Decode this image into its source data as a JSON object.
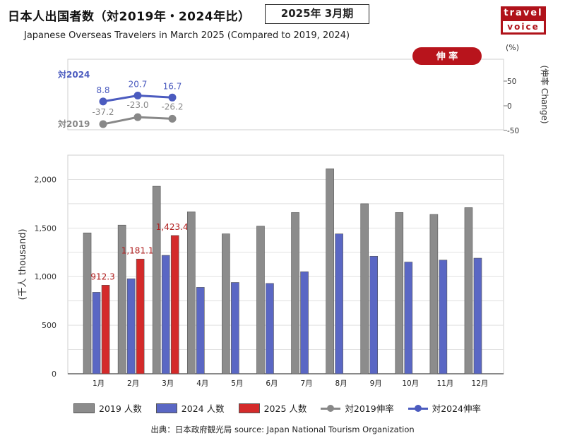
{
  "header": {
    "title": "日本人出国者数（対2019年・2024年比）",
    "period_badge": "2025年 3月期",
    "subtitle": "Japanese Overseas Travelers in March 2025 (Compared to 2019, 2024)",
    "logo_line1": "travel",
    "logo_line2": "voice"
  },
  "source_note": "出典：日本政府観光局  source: Japan National Tourism Organization",
  "colors": {
    "y2019": "#8c8c8c",
    "y2024": "#5a67c4",
    "y2025": "#d42a2a",
    "rate2019": "#888888",
    "rate2024": "#4b5bbf",
    "badge": "#b8141c"
  },
  "chart_data": [
    {
      "type": "line",
      "badge": "伸 率",
      "unit_label": "(%)",
      "ylabel": "(伸率 Change)",
      "ylim": [
        -50,
        100
      ],
      "yticks": [
        50,
        0,
        -50
      ],
      "categories": [
        "1月",
        "2月",
        "3月"
      ],
      "series": [
        {
          "name": "対2024",
          "key": "rate2024",
          "values": [
            8.8,
            20.7,
            16.7
          ],
          "labels": [
            "8.8",
            "20.7",
            "16.7"
          ]
        },
        {
          "name": "対2019",
          "key": "rate2019",
          "values": [
            -37.2,
            -23.0,
            -26.2
          ],
          "labels": [
            "-37.2",
            "-23.0",
            "-26.2"
          ]
        }
      ]
    },
    {
      "type": "bar",
      "ylabel": "(千人 thousand)",
      "ylim": [
        0,
        2250
      ],
      "yticks": [
        0,
        500,
        1000,
        1500,
        2000
      ],
      "ytick_labels": [
        "0",
        "500",
        "1,000",
        "1,500",
        "2,000"
      ],
      "grid": true,
      "categories": [
        "1月",
        "2月",
        "3月",
        "4月",
        "5月",
        "6月",
        "7月",
        "8月",
        "9月",
        "10月",
        "11月",
        "12月"
      ],
      "series": [
        {
          "name": "2019 人数",
          "key": "y2019",
          "values": [
            1450,
            1530,
            1930,
            1667,
            1440,
            1520,
            1660,
            2110,
            1750,
            1660,
            1640,
            1710
          ]
        },
        {
          "name": "2024 人数",
          "key": "y2024",
          "values": [
            839,
            978,
            1219,
            890,
            940,
            930,
            1050,
            1440,
            1210,
            1150,
            1170,
            1190
          ]
        },
        {
          "name": "2025 人数",
          "key": "y2025",
          "values": [
            912.3,
            1181.1,
            1423.4,
            null,
            null,
            null,
            null,
            null,
            null,
            null,
            null,
            null
          ],
          "labels": [
            "912.3",
            "1,181.1",
            "1,423.4"
          ]
        }
      ]
    }
  ],
  "legend": [
    {
      "label": "2019 人数",
      "kind": "bar",
      "key": "y2019"
    },
    {
      "label": "2024 人数",
      "kind": "bar",
      "key": "y2024"
    },
    {
      "label": "2025 人数",
      "kind": "bar",
      "key": "y2025"
    },
    {
      "label": "対2019伸率",
      "kind": "line",
      "key": "rate2019"
    },
    {
      "label": "対2024伸率",
      "kind": "line",
      "key": "rate2024"
    }
  ]
}
